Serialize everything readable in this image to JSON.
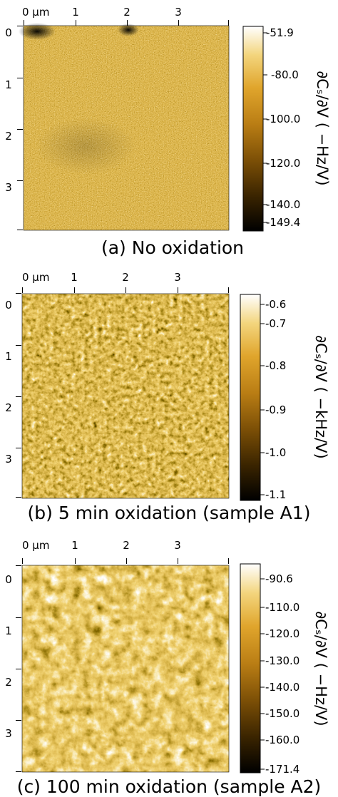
{
  "panels": [
    {
      "id": "a",
      "caption": "(a) No oxidation",
      "x_ticks": [
        "0 µm",
        "1",
        "2",
        "3"
      ],
      "y_ticks": [
        "0",
        "1",
        "2",
        "3"
      ],
      "colorbar_ticks": [
        "-51.9",
        "-80.0",
        "-100.0",
        "-120.0",
        "-140.0",
        "-149.4"
      ],
      "colorbar_label": "∂Cₛ/∂V ( −Hz/V)",
      "colormap": [
        "#000000",
        "#3a2400",
        "#7a4e06",
        "#b97d14",
        "#e0a52c",
        "#f3d57d",
        "#ffffff"
      ],
      "texture": "fine-noise"
    },
    {
      "id": "b",
      "caption": "(b) 5 min oxidation (sample A1)",
      "x_ticks": [
        "0 µm",
        "1",
        "2",
        "3"
      ],
      "y_ticks": [
        "0",
        "1",
        "2",
        "3"
      ],
      "colorbar_ticks": [
        "-0.6",
        "-0.7",
        "-0.8",
        "-0.9",
        "-1.0",
        "-1.1"
      ],
      "colorbar_label": "∂Cₛ/∂V ( −kHz/V)",
      "colormap": [
        "#000000",
        "#3a2400",
        "#7a4e06",
        "#b97d14",
        "#e0a52c",
        "#f3d57d",
        "#ffffff"
      ],
      "texture": "grainy"
    },
    {
      "id": "c",
      "caption": "(c) 100 min oxidation (sample A2)",
      "x_ticks": [
        "0 µm",
        "1",
        "2",
        "3"
      ],
      "y_ticks": [
        "0",
        "1",
        "2",
        "3"
      ],
      "colorbar_ticks": [
        "-90.6",
        "-110.0",
        "-120.0",
        "-130.0",
        "-140.0",
        "-150.0",
        "-160.0",
        "-171.4"
      ],
      "colorbar_label": "∂Cₛ/∂V ( −Hz/V)",
      "colormap": [
        "#000000",
        "#3a2400",
        "#7a4e06",
        "#b97d14",
        "#e0a52c",
        "#f3d57d",
        "#ffffff"
      ],
      "texture": "mottled"
    }
  ]
}
